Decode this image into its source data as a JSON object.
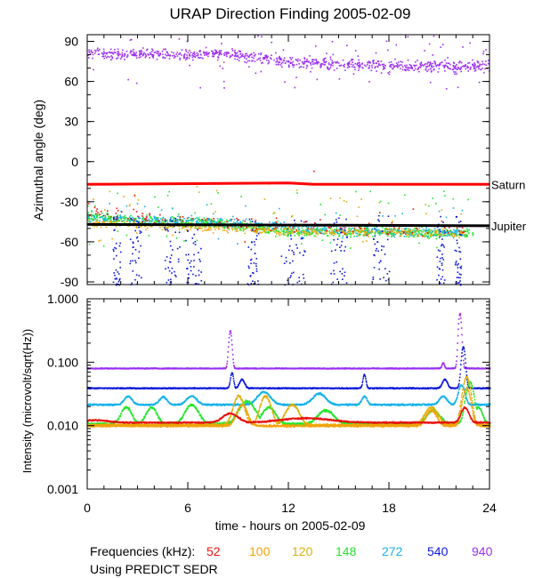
{
  "title": "URAP Direction Finding  2005-02-09",
  "footer": {
    "freq_label": "Frequencies (kHz):",
    "source_note": "Using PREDICT SEDR"
  },
  "frequencies": [
    {
      "label": "52",
      "color": "#e8130f"
    },
    {
      "label": "100",
      "color": "#f5a20a"
    },
    {
      "label": "120",
      "color": "#ddb00a"
    },
    {
      "label": "148",
      "color": "#22e62c"
    },
    {
      "label": "272",
      "color": "#16b2ea"
    },
    {
      "label": "540",
      "color": "#0c18d8"
    },
    {
      "label": "940",
      "color": "#9b2ff0"
    }
  ],
  "chart_data": [
    {
      "type": "scatter",
      "title": "URAP Direction Finding  2005-02-09",
      "ylabel": "Azimuthal angle (deg)",
      "xlabel": "",
      "xlim": [
        0,
        24
      ],
      "ylim": [
        -92,
        95
      ],
      "xticks": [
        "0",
        "6",
        "12",
        "18",
        "24"
      ],
      "yticks": [
        {
          "value": 90,
          "label": "90"
        },
        {
          "value": 60,
          "label": "60"
        },
        {
          "value": 30,
          "label": "30"
        },
        {
          "value": 0,
          "label": "0"
        },
        {
          "value": -30,
          "label": "-30"
        },
        {
          "value": -60,
          "label": "-60"
        },
        {
          "value": -90,
          "label": "-90"
        }
      ],
      "reference_lines": [
        {
          "name": "Saturn",
          "color": "#ff0000",
          "points": [
            [
              0,
              -17
            ],
            [
              12,
              -16
            ],
            [
              13.5,
              -17
            ],
            [
              24,
              -17
            ]
          ]
        },
        {
          "name": "Jupiter",
          "color": "#000000",
          "points": [
            [
              0,
              -47
            ],
            [
              12,
              -47.5
            ],
            [
              24,
              -48
            ]
          ]
        }
      ],
      "series": [
        {
          "name": "940",
          "color": "#9b2ff0",
          "kind": "band",
          "center": [
            [
              0,
              82
            ],
            [
              6,
              80
            ],
            [
              8,
              82
            ],
            [
              12,
              75
            ],
            [
              18,
              72
            ],
            [
              24,
              72
            ]
          ],
          "spread": 6,
          "extra_range": [
            55,
            95
          ],
          "count": 900
        },
        {
          "name": "148",
          "color": "#22e62c",
          "kind": "band",
          "center": [
            [
              0,
              -40
            ],
            [
              4,
              -44
            ],
            [
              8,
              -46
            ],
            [
              12,
              -52
            ],
            [
              18,
              -52
            ],
            [
              22,
              -53
            ],
            [
              24,
              -52
            ]
          ],
          "spread": 5,
          "extra_range": [
            -65,
            -20
          ],
          "count": 900,
          "start": 0,
          "end": 23
        },
        {
          "name": "272",
          "color": "#16b2ea",
          "kind": "band",
          "center": [
            [
              0,
              -42
            ],
            [
              4,
              -43
            ],
            [
              8,
              -45
            ],
            [
              12,
              -49
            ],
            [
              18,
              -52
            ],
            [
              22,
              -53
            ]
          ],
          "spread": 5,
          "extra_range": [
            -62,
            -30
          ],
          "count": 500,
          "start": 0,
          "end": 22.5
        },
        {
          "name": "120",
          "color": "#ddb00a",
          "kind": "band",
          "center": [
            [
              0,
              -45
            ],
            [
              6,
              -48
            ],
            [
              12,
              -52
            ],
            [
              18,
              -52
            ],
            [
              22,
              -54
            ]
          ],
          "spread": 4,
          "extra_range": [
            -60,
            -15
          ],
          "count": 300,
          "start": 0,
          "end": 22.5
        },
        {
          "name": "100",
          "color": "#f5a20a",
          "kind": "band",
          "center": [
            [
              0,
              -46
            ],
            [
              12,
              -52
            ],
            [
              22,
              -53
            ]
          ],
          "spread": 4,
          "extra_range": [
            -60,
            -20
          ],
          "count": 200,
          "start": 0,
          "end": 22.5
        },
        {
          "name": "52",
          "color": "#e8130f",
          "kind": "band",
          "center": [
            [
              0,
              -35
            ],
            [
              4,
              -42
            ],
            [
              12,
              -48
            ],
            [
              18,
              -50
            ],
            [
              22,
              -50
            ]
          ],
          "spread": 8,
          "extra_range": [
            -70,
            -5
          ],
          "count": 160,
          "start": 0,
          "end": 22.5
        },
        {
          "name": "540",
          "color": "#0c18d8",
          "kind": "spikes",
          "intervals": [
            [
              1.5,
              2.0
            ],
            [
              2.5,
              3.2
            ],
            [
              4.5,
              5.5
            ],
            [
              5.8,
              6.8
            ],
            [
              9.5,
              10.2
            ],
            [
              11.5,
              13.0
            ],
            [
              14.5,
              15.5
            ],
            [
              17.0,
              18.0
            ],
            [
              20.8,
              21.3
            ],
            [
              21.9,
              22.3
            ]
          ],
          "range": [
            -92,
            -40
          ],
          "count": 380
        }
      ]
    },
    {
      "type": "line",
      "ylabel": "Intensity (microvolt/sqrt(Hz))",
      "xlabel": "time - hours on 2005-02-09",
      "xlim": [
        0,
        24
      ],
      "ylim": [
        0.001,
        1.0
      ],
      "yscale": "log",
      "xticks": [
        "0",
        "6",
        "12",
        "18",
        "24"
      ],
      "yticks": [
        {
          "value": 1.0,
          "label": "1.000"
        },
        {
          "value": 0.1,
          "label": "0.100"
        },
        {
          "value": 0.01,
          "label": "0.010"
        },
        {
          "value": 0.001,
          "label": "0.001"
        }
      ],
      "series": [
        {
          "name": "940",
          "color": "#9b2ff0",
          "base": 0.082,
          "noise": 0.04,
          "peaks": [
            [
              8.5,
              0.32,
              0.12
            ],
            [
              22.2,
              0.6,
              0.12
            ],
            [
              21.2,
              0.1,
              0.1
            ]
          ]
        },
        {
          "name": "540",
          "color": "#0c18d8",
          "base": 0.04,
          "noise": 0.05,
          "peaks": [
            [
              8.6,
              0.07,
              0.12
            ],
            [
              9.2,
              0.055,
              0.2
            ],
            [
              16.5,
              0.065,
              0.12
            ],
            [
              21.3,
              0.055,
              0.2
            ],
            [
              22.4,
              0.18,
              0.15
            ]
          ]
        },
        {
          "name": "272",
          "color": "#16b2ea",
          "base": 0.022,
          "noise": 0.08,
          "peaks": [
            [
              2.4,
              0.03,
              0.3
            ],
            [
              4.5,
              0.029,
              0.3
            ],
            [
              6.2,
              0.03,
              0.4
            ],
            [
              10.5,
              0.035,
              0.5
            ],
            [
              13.8,
              0.033,
              0.5
            ],
            [
              16.5,
              0.03,
              0.2
            ],
            [
              21.2,
              0.03,
              0.3
            ],
            [
              22.3,
              0.045,
              0.25
            ]
          ]
        },
        {
          "name": "148",
          "color": "#22e62c",
          "base": 0.011,
          "noise": 0.12,
          "peaks": [
            [
              2.3,
              0.02,
              0.4
            ],
            [
              3.8,
              0.02,
              0.4
            ],
            [
              6.2,
              0.022,
              0.5
            ],
            [
              9.5,
              0.025,
              0.6
            ],
            [
              10.8,
              0.02,
              0.5
            ],
            [
              14.2,
              0.018,
              0.6
            ],
            [
              20.6,
              0.018,
              0.5
            ],
            [
              22.8,
              0.05,
              0.3
            ],
            [
              23.3,
              0.02,
              0.3
            ]
          ]
        },
        {
          "name": "120",
          "color": "#ddb00a",
          "base": 0.0105,
          "noise": 0.12,
          "peaks": [
            [
              9.0,
              0.03,
              0.4
            ],
            [
              10.6,
              0.03,
              0.4
            ],
            [
              12.2,
              0.022,
              0.5
            ],
            [
              20.5,
              0.02,
              0.5
            ],
            [
              22.6,
              0.06,
              0.3
            ]
          ]
        },
        {
          "name": "100",
          "color": "#f5a20a",
          "base": 0.0102,
          "noise": 0.1,
          "peaks": [
            [
              9.2,
              0.022,
              0.4
            ],
            [
              20.5,
              0.018,
              0.4
            ],
            [
              22.6,
              0.04,
              0.3
            ]
          ]
        },
        {
          "name": "52",
          "color": "#e8130f",
          "base": 0.0115,
          "noise": 0.07,
          "peaks": [
            [
              0.5,
              0.0125,
              1.0
            ],
            [
              8.5,
              0.016,
              0.6
            ],
            [
              13.0,
              0.0135,
              2.0
            ],
            [
              22.5,
              0.02,
              0.3
            ]
          ]
        }
      ]
    }
  ]
}
